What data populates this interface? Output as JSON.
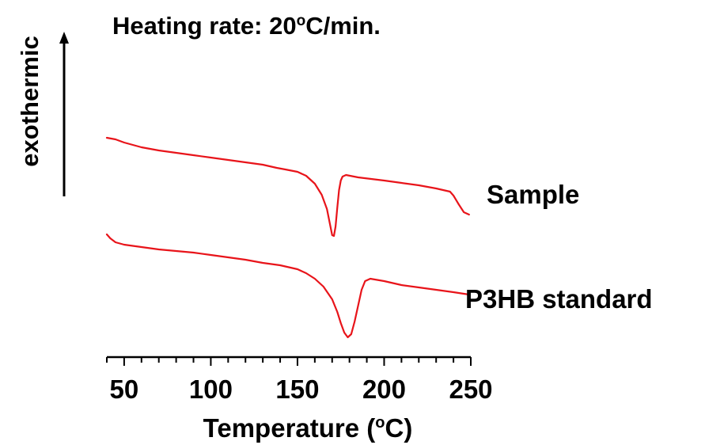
{
  "chart_data": {
    "type": "line",
    "title_prefix": "Heating rate: 20",
    "title_degree": "o",
    "title_suffix": "C/min.",
    "xlabel_prefix": "Temperature (",
    "xlabel_degree": "o",
    "xlabel_suffix": "C)",
    "ylabel": "exothermic",
    "xlim": [
      40,
      250
    ],
    "x_ticks": [
      50,
      100,
      150,
      200,
      250
    ],
    "line_color": "#e8141a",
    "series": [
      {
        "name": "Sample",
        "points": [
          [
            40,
            174
          ],
          [
            45,
            176
          ],
          [
            50,
            180
          ],
          [
            60,
            186
          ],
          [
            70,
            190
          ],
          [
            80,
            193
          ],
          [
            90,
            196
          ],
          [
            100,
            199
          ],
          [
            110,
            202
          ],
          [
            120,
            205
          ],
          [
            130,
            208
          ],
          [
            138,
            212
          ],
          [
            143,
            214
          ],
          [
            150,
            217
          ],
          [
            155,
            222
          ],
          [
            160,
            232
          ],
          [
            164,
            246
          ],
          [
            167,
            264
          ],
          [
            169,
            286
          ],
          [
            170,
            297
          ],
          [
            171,
            298
          ],
          [
            172,
            286
          ],
          [
            173,
            262
          ],
          [
            174,
            240
          ],
          [
            175,
            228
          ],
          [
            176,
            223
          ],
          [
            178,
            221
          ],
          [
            185,
            224
          ],
          [
            200,
            228
          ],
          [
            210,
            231
          ],
          [
            220,
            234
          ],
          [
            230,
            238
          ],
          [
            238,
            242
          ],
          [
            240,
            247
          ],
          [
            243,
            258
          ],
          [
            246,
            268
          ],
          [
            249,
            271
          ]
        ]
      },
      {
        "name": "P3HB standard",
        "points": [
          [
            40,
            296
          ],
          [
            42,
            301
          ],
          [
            45,
            306
          ],
          [
            50,
            309
          ],
          [
            60,
            312
          ],
          [
            70,
            315
          ],
          [
            80,
            317
          ],
          [
            90,
            319
          ],
          [
            100,
            322
          ],
          [
            110,
            325
          ],
          [
            120,
            328
          ],
          [
            130,
            332
          ],
          [
            140,
            335
          ],
          [
            150,
            340
          ],
          [
            155,
            345
          ],
          [
            160,
            352
          ],
          [
            165,
            362
          ],
          [
            170,
            378
          ],
          [
            173,
            394
          ],
          [
            175,
            408
          ],
          [
            177,
            420
          ],
          [
            179,
            426
          ],
          [
            181,
            422
          ],
          [
            183,
            406
          ],
          [
            185,
            386
          ],
          [
            187,
            366
          ],
          [
            189,
            355
          ],
          [
            192,
            352
          ],
          [
            200,
            355
          ],
          [
            210,
            360
          ],
          [
            220,
            363
          ],
          [
            230,
            366
          ],
          [
            240,
            369
          ],
          [
            249,
            372
          ]
        ]
      }
    ]
  }
}
